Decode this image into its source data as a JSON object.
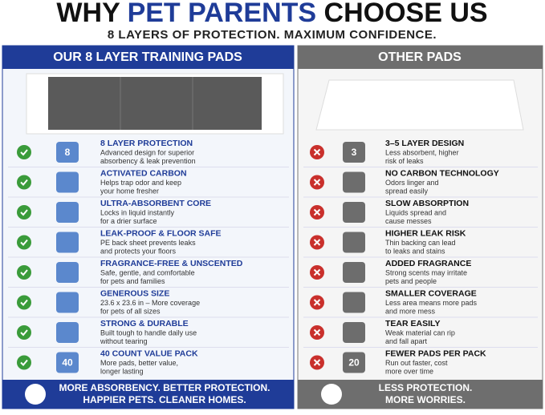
{
  "header": {
    "title_start": "WHY ",
    "title_highlight": "PET PARENTS",
    "title_end": " CHOOSE US",
    "subtitle": "8 LAYERS OF PROTECTION. MAXIMUM CONFIDENCE."
  },
  "left": {
    "heading": "OUR 8 LAYER TRAINING PADS",
    "rows": [
      {
        "title": "8 LAYER PROTECTION",
        "desc": [
          "Advanced design for superior",
          "absorbency & leak prevention"
        ],
        "icon_label": "8"
      },
      {
        "title": "ACTIVATED CARBON",
        "desc": [
          "Helps trap odor and keep",
          "your home fresher"
        ]
      },
      {
        "title": "ULTRA-ABSORBENT CORE",
        "desc": [
          "Locks in liquid instantly",
          "for a drier surface"
        ]
      },
      {
        "title": "LEAK-PROOF & FLOOR SAFE",
        "desc": [
          "PE back sheet prevents leaks",
          "and protects your floors"
        ]
      },
      {
        "title": "FRAGRANCE-FREE & UNSCENTED",
        "desc": [
          "Safe, gentle, and comfortable",
          "for pets and families"
        ]
      },
      {
        "title": "GENEROUS SIZE",
        "desc": [
          "23.6 x 23.6 in – More coverage",
          "for pets of all sizes"
        ]
      },
      {
        "title": "STRONG & DURABLE",
        "desc": [
          "Built tough to handle daily use",
          "without tearing"
        ]
      },
      {
        "title": "40 COUNT VALUE PACK",
        "desc": [
          "More pads, better value,",
          "longer lasting"
        ],
        "icon_label": "40"
      }
    ],
    "footer": [
      "MORE ABSORBENCY. BETTER PROTECTION.",
      "HAPPIER PETS. CLEANER HOMES."
    ]
  },
  "right": {
    "heading": "OTHER PADS",
    "rows": [
      {
        "title": "3–5 LAYER DESIGN",
        "desc": [
          "Less absorbent, higher",
          "risk of leaks"
        ],
        "icon_label": "3"
      },
      {
        "title": "NO CARBON TECHNOLOGY",
        "desc": [
          "Odors linger and",
          "spread easily"
        ]
      },
      {
        "title": "SLOW ABSORPTION",
        "desc": [
          "Liquids spread and",
          "cause messes"
        ]
      },
      {
        "title": "HIGHER LEAK RISK",
        "desc": [
          "Thin backing can lead",
          "to leaks and stains"
        ]
      },
      {
        "title": "ADDED FRAGRANCE",
        "desc": [
          "Strong scents may irritate",
          "pets and people"
        ]
      },
      {
        "title": "SMALLER COVERAGE",
        "desc": [
          "Less area means more pads",
          "and more mess"
        ]
      },
      {
        "title": "TEAR EASILY",
        "desc": [
          "Weak material can rip",
          "and fall apart"
        ]
      },
      {
        "title": "FEWER PADS PER PACK",
        "desc": [
          "Run out faster, cost",
          "more over time"
        ],
        "icon_label": "20"
      }
    ],
    "footer": [
      "LESS PROTECTION.",
      "MORE WORRIES."
    ]
  }
}
